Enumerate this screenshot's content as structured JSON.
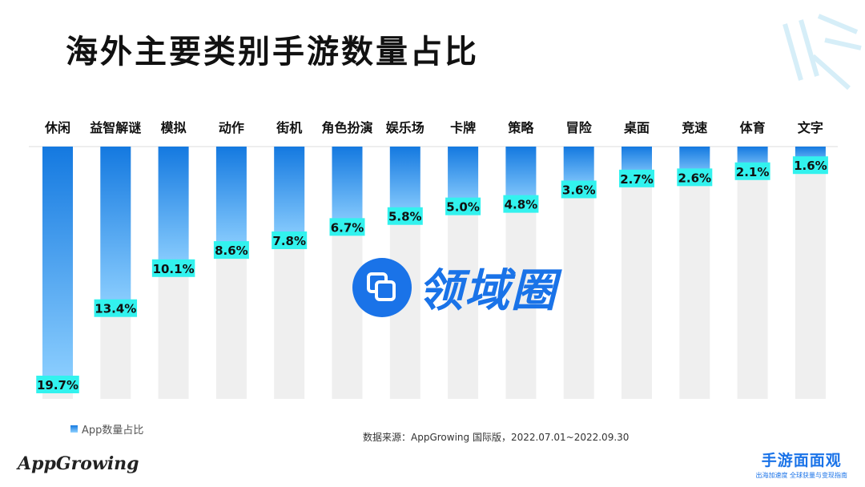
{
  "title": "海外主要类别手游数量占比",
  "legend_label": "App数量占比",
  "source": "数据来源：AppGrowing 国际版，2022.07.01~2022.09.30",
  "logo_left": "AppGrowing",
  "logo_right_main": "手游面面观",
  "logo_right_sub": "出海加速度 全球获量与变现指南",
  "watermark_text": "领域圈",
  "colors": {
    "bar_top": "#1479e0",
    "bar_bottom": "#8ed0ff",
    "track": "#efefef",
    "label_bg": "#32f2ee",
    "watermark": "#1a73e8"
  },
  "chart_data": {
    "type": "bar",
    "categories": [
      "休闲",
      "益智解谜",
      "模拟",
      "动作",
      "街机",
      "角色扮演",
      "娱乐场",
      "卡牌",
      "策略",
      "冒险",
      "桌面",
      "竞速",
      "体育",
      "文字"
    ],
    "values": [
      19.7,
      13.4,
      10.1,
      8.6,
      7.8,
      6.7,
      5.8,
      5.0,
      4.8,
      3.6,
      2.7,
      2.6,
      2.1,
      1.6
    ],
    "value_labels": [
      "19.7%",
      "13.4%",
      "10.1%",
      "8.6%",
      "7.8%",
      "6.7%",
      "5.8%",
      "5.0%",
      "4.8%",
      "3.6%",
      "2.7%",
      "2.6%",
      "2.1%",
      "1.6%"
    ],
    "series": [
      {
        "name": "App数量占比",
        "values": [
          19.7,
          13.4,
          10.1,
          8.6,
          7.8,
          6.7,
          5.8,
          5.0,
          4.8,
          3.6,
          2.7,
          2.6,
          2.1,
          1.6
        ]
      }
    ],
    "ylim": [
      0,
      19.7
    ],
    "orientation": "bars hang from top axis",
    "grid": false,
    "legend_position": "bottom-left"
  }
}
